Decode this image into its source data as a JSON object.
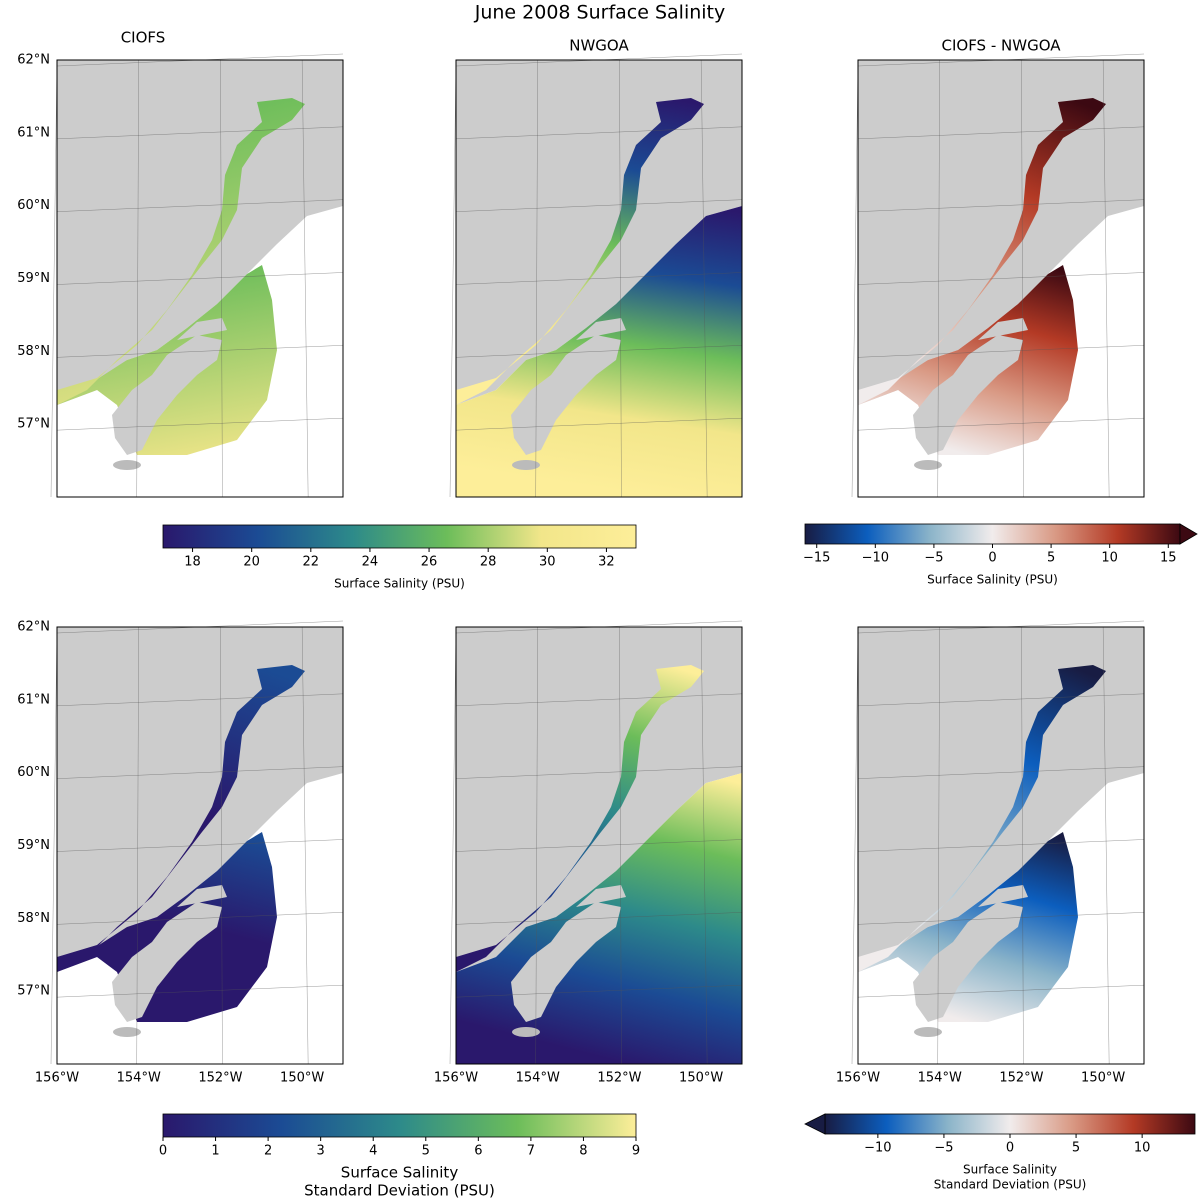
{
  "chart_data": {
    "type": "map",
    "title": "June 2008 Surface Salinity",
    "panel_titles": [
      "CIOFS",
      "NWGOA",
      "CIOFS - NWGOA"
    ],
    "latlim": [
      56,
      62
    ],
    "lonlim": [
      -156,
      -149
    ],
    "lat_ticks": [
      {
        "value": 62,
        "label": "62°N"
      },
      {
        "value": 61,
        "label": "61°N"
      },
      {
        "value": 60,
        "label": "60°N"
      },
      {
        "value": 59,
        "label": "59°N"
      },
      {
        "value": 58,
        "label": "58°N"
      },
      {
        "value": 57,
        "label": "57°N"
      }
    ],
    "lon_ticks": [
      {
        "value": -156,
        "label": "156°W"
      },
      {
        "value": -154,
        "label": "154°W"
      },
      {
        "value": -152,
        "label": "152°W"
      },
      {
        "value": -150,
        "label": "150°W"
      }
    ],
    "land_color": "#cccccc",
    "colorbars": [
      {
        "label": [
          "Surface Salinity (PSU)"
        ],
        "lim": [
          17,
          33
        ],
        "ticks": [
          18,
          20,
          22,
          24,
          26,
          28,
          30,
          32
        ],
        "colors": [
          "#2a186c",
          "#1b4b94",
          "#2d8a8a",
          "#6cbd5a",
          "#f2e68a",
          "#fdee99"
        ]
      },
      {
        "label": [
          "Surface Salinity (PSU)"
        ],
        "lim": [
          -16,
          16
        ],
        "extend": "max",
        "ticks": [
          {
            "value": -15,
            "label": "−15"
          },
          {
            "value": -10,
            "label": "−10"
          },
          {
            "value": -5,
            "label": "−5"
          },
          0,
          5,
          10,
          15
        ],
        "colors": [
          "#181c43",
          "#0c5ebe",
          "#8bb4c9",
          "#f1ecec",
          "#d99a85",
          "#b43a25",
          "#3c0912"
        ]
      },
      {
        "label": [
          "Surface Salinity",
          "Standard Deviation (PSU)"
        ],
        "lim": [
          0,
          9
        ],
        "ticks": [
          0,
          1,
          2,
          3,
          4,
          5,
          6,
          7,
          8,
          9
        ],
        "colors": [
          "#2a186c",
          "#1b4b94",
          "#2d8a8a",
          "#6cbd5a",
          "#fdee99"
        ]
      },
      {
        "label": [
          "Surface Salinity",
          "Standard Deviation (PSU)"
        ],
        "lim": [
          -14,
          14
        ],
        "extend": "min",
        "ticks": [
          {
            "value": -10,
            "label": "−10"
          },
          {
            "value": -5,
            "label": "−5"
          },
          0,
          5,
          10
        ],
        "colors": [
          "#181c43",
          "#0c5ebe",
          "#8bb4c9",
          "#f1ecec",
          "#d99a85",
          "#b43a25",
          "#3c0912"
        ]
      }
    ]
  }
}
